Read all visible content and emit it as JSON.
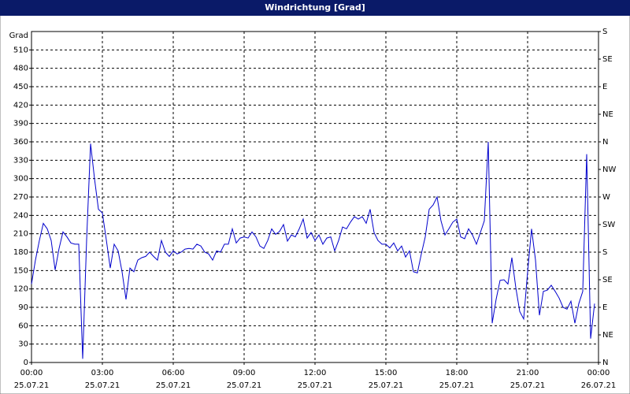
{
  "chart_data": {
    "type": "line",
    "title": "Windrichtung [Grad]",
    "y_label": "Grad",
    "x": [
      0,
      10,
      20,
      30,
      40,
      50,
      60,
      70,
      80,
      90,
      100,
      110,
      120,
      130,
      140,
      150,
      160,
      170,
      180,
      190,
      200,
      210,
      220,
      230,
      240,
      250,
      260,
      270,
      280,
      290,
      300,
      310,
      320,
      330,
      340,
      350,
      360,
      370,
      380,
      390,
      400,
      410,
      420,
      430,
      440,
      450,
      460,
      470,
      480,
      490,
      500,
      510,
      520,
      530,
      540,
      550,
      560,
      570,
      580,
      590,
      600,
      610,
      620,
      630,
      640,
      650,
      660,
      670,
      680,
      690,
      700,
      710,
      720,
      730,
      740,
      750,
      760,
      770,
      780,
      790,
      800,
      810,
      820,
      830,
      840,
      850,
      860,
      870,
      880,
      890,
      900,
      910,
      920,
      930,
      940,
      950,
      960,
      970,
      980,
      990,
      1000,
      1010,
      1020,
      1030,
      1040,
      1050,
      1060,
      1070,
      1080,
      1090,
      1100,
      1110,
      1120,
      1130,
      1140,
      1150,
      1160,
      1170,
      1180,
      1190,
      1200,
      1210,
      1220,
      1230,
      1240,
      1250,
      1260,
      1270,
      1280,
      1290,
      1300,
      1310,
      1320,
      1330,
      1340,
      1350,
      1360,
      1370,
      1380,
      1390,
      1400,
      1410,
      1420,
      1430
    ],
    "series": [
      {
        "name": "Windrichtung",
        "color": "#0000cc",
        "values": [
          128,
          167,
          199,
          227,
          218,
          199,
          151,
          186,
          213,
          205,
          195,
          193,
          193,
          6,
          200,
          357,
          300,
          250,
          244,
          200,
          154,
          193,
          182,
          148,
          103,
          154,
          148,
          167,
          171,
          173,
          180,
          173,
          167,
          199,
          180,
          173,
          182,
          177,
          180,
          185,
          186,
          185,
          193,
          190,
          180,
          177,
          167,
          182,
          180,
          193,
          193,
          218,
          195,
          203,
          205,
          203,
          213,
          205,
          190,
          186,
          199,
          218,
          209,
          214,
          225,
          198,
          208,
          205,
          218,
          234,
          203,
          212,
          199,
          208,
          193,
          203,
          205,
          182,
          199,
          221,
          218,
          229,
          238,
          234,
          238,
          227,
          250,
          212,
          199,
          193,
          193,
          187,
          195,
          182,
          190,
          172,
          182,
          148,
          146,
          177,
          205,
          250,
          257,
          270,
          231,
          208,
          218,
          229,
          234,
          205,
          202,
          218,
          208,
          193,
          212,
          231,
          360,
          64,
          103,
          134,
          135,
          128,
          171,
          122,
          83,
          71,
          148,
          218,
          167,
          77,
          116,
          118,
          126,
          116,
          105,
          90,
          87,
          100,
          64,
          96,
          116,
          340,
          39,
          96
        ]
      }
    ],
    "xlim": [
      0,
      1440
    ],
    "xticks": [
      {
        "value": 0,
        "label": "00:00",
        "date": "25.07.21"
      },
      {
        "value": 180,
        "label": "03:00",
        "date": "25.07.21"
      },
      {
        "value": 360,
        "label": "06:00",
        "date": "25.07.21"
      },
      {
        "value": 540,
        "label": "09:00",
        "date": "25.07.21"
      },
      {
        "value": 720,
        "label": "12:00",
        "date": "25.07.21"
      },
      {
        "value": 900,
        "label": "15:00",
        "date": "25.07.21"
      },
      {
        "value": 1080,
        "label": "18:00",
        "date": "25.07.21"
      },
      {
        "value": 1260,
        "label": "21:00",
        "date": "25.07.21"
      },
      {
        "value": 1440,
        "label": "00:00",
        "date": "26.07.21"
      }
    ],
    "ylim": [
      0,
      540
    ],
    "yticks": [
      0,
      30,
      60,
      90,
      120,
      150,
      180,
      210,
      240,
      270,
      300,
      330,
      360,
      390,
      420,
      450,
      480,
      510
    ],
    "y2lim": [
      0,
      540
    ],
    "y2ticks": [
      {
        "value": 0,
        "label": "N"
      },
      {
        "value": 45,
        "label": "NE"
      },
      {
        "value": 90,
        "label": "E"
      },
      {
        "value": 135,
        "label": "SE"
      },
      {
        "value": 180,
        "label": "S"
      },
      {
        "value": 225,
        "label": "SW"
      },
      {
        "value": 270,
        "label": "W"
      },
      {
        "value": 315,
        "label": "NW"
      },
      {
        "value": 360,
        "label": "N"
      },
      {
        "value": 405,
        "label": "NE"
      },
      {
        "value": 450,
        "label": "E"
      },
      {
        "value": 495,
        "label": "SE"
      },
      {
        "value": 540,
        "label": "S"
      }
    ],
    "grid": true
  }
}
